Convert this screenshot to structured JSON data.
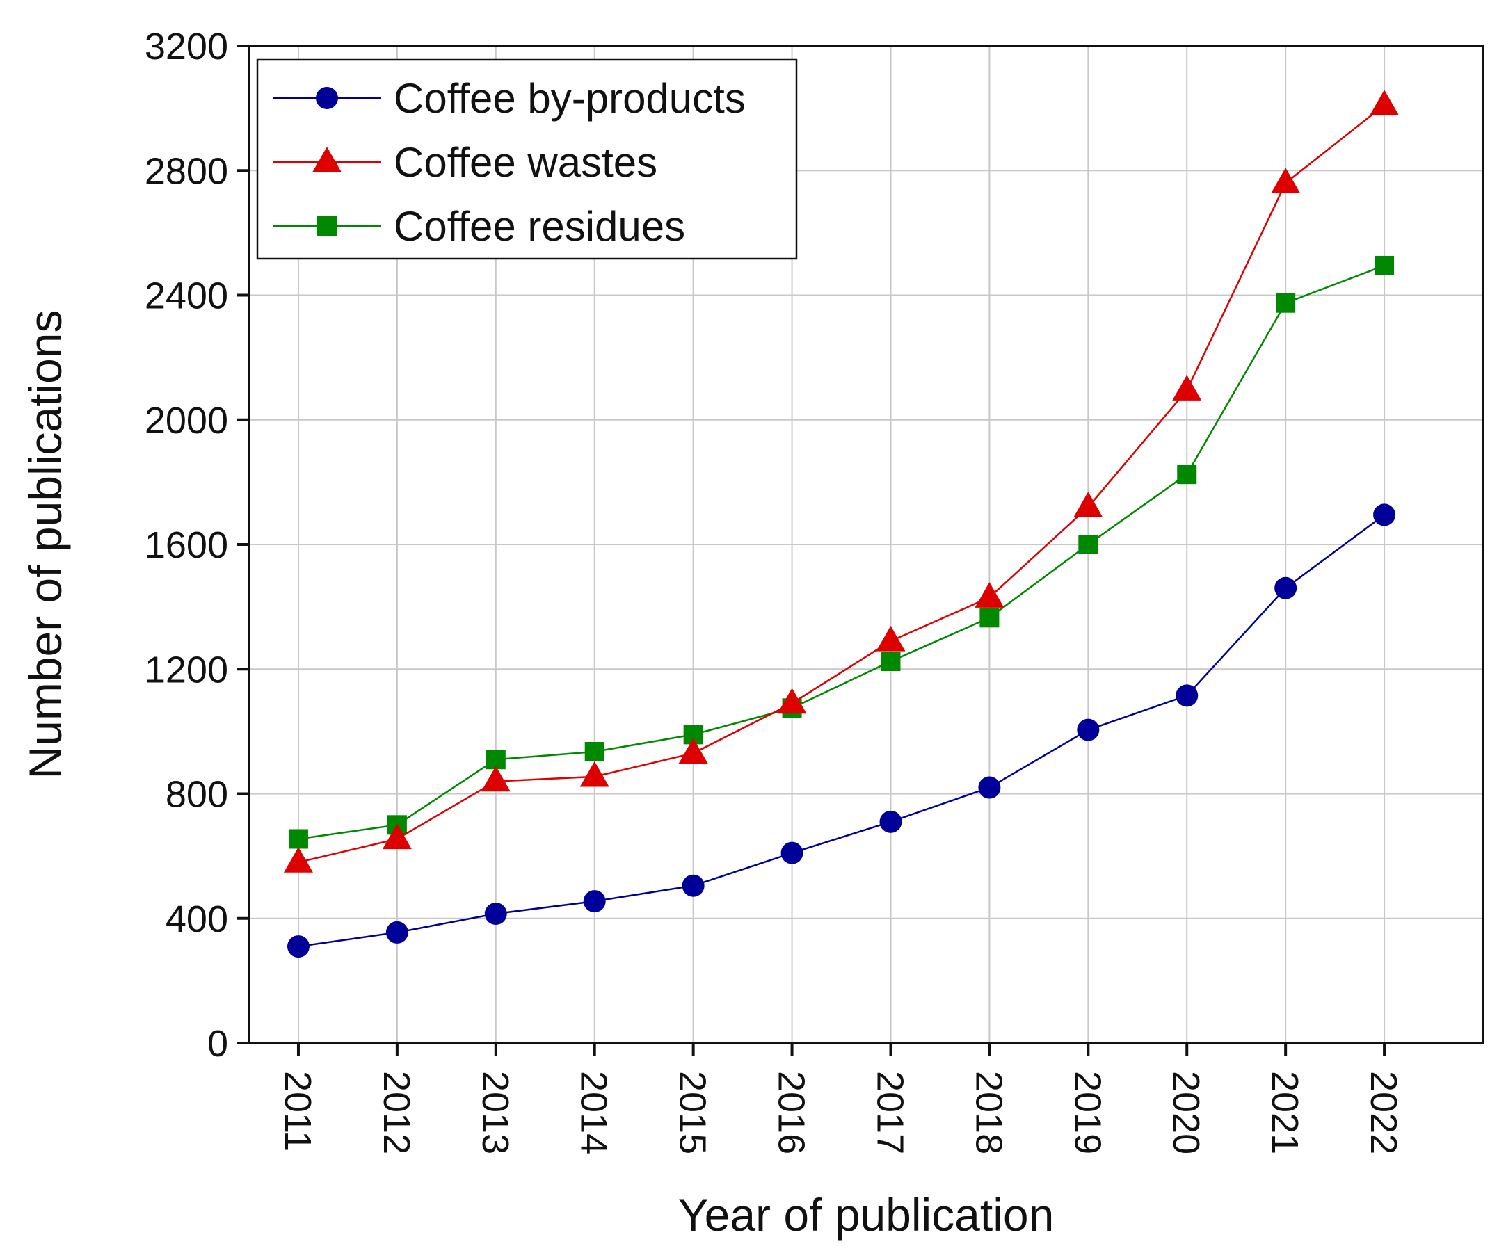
{
  "chart_data": {
    "type": "line",
    "title": "",
    "xlabel": "Year of publication",
    "ylabel": "Number of publications",
    "categories": [
      "2011",
      "2012",
      "2013",
      "2014",
      "2015",
      "2016",
      "2017",
      "2018",
      "2019",
      "2020",
      "2021",
      "2022"
    ],
    "ylim": [
      0,
      3200
    ],
    "yticks": [
      0,
      400,
      800,
      1200,
      1600,
      2000,
      2400,
      2800,
      3200
    ],
    "ytick_labels": [
      "0",
      "400",
      "800",
      "1200",
      "1600",
      "2000",
      "2400",
      "2800",
      "3200"
    ],
    "grid": true,
    "legend_position": "top-left",
    "series": [
      {
        "name": "Coffee by-products",
        "color": "#000099",
        "marker": "circle",
        "values": [
          310,
          355,
          415,
          455,
          505,
          610,
          710,
          820,
          1005,
          1115,
          1460,
          1695
        ]
      },
      {
        "name": "Coffee wastes",
        "color": "#dd0000",
        "marker": "triangle",
        "values": [
          580,
          655,
          840,
          855,
          930,
          1090,
          1290,
          1430,
          1720,
          2095,
          2760,
          3010
        ]
      },
      {
        "name": "Coffee residues",
        "color": "#008800",
        "marker": "square",
        "values": [
          655,
          700,
          910,
          935,
          990,
          1075,
          1225,
          1365,
          1600,
          1825,
          2375,
          2495
        ]
      }
    ]
  }
}
